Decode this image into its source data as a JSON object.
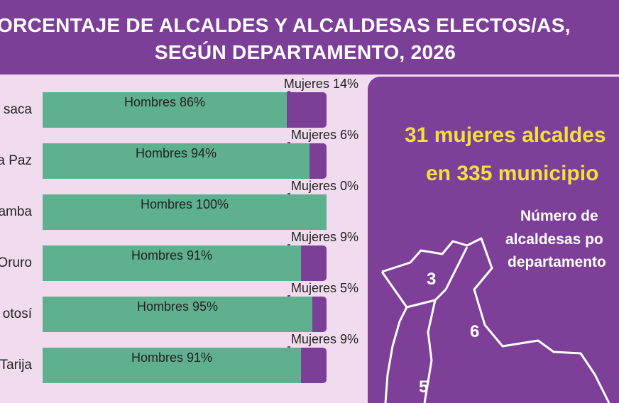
{
  "chart_data": {
    "type": "stacked-bar",
    "title": [
      "ORCENTAJE DE ALCALDES Y ALCALDESAS ELECTOS/AS,",
      "SEGÚN DEPARTAMENTO, 2026"
    ],
    "categories": [
      "saca",
      "a Paz",
      "amba",
      "Oruro",
      "otosí",
      "Tarija"
    ],
    "series": [
      {
        "name": "Hombres",
        "color": "#5fb08f",
        "values": [
          86,
          94,
          100,
          91,
          95,
          91
        ],
        "value_labels": [
          "86%",
          "94%",
          "100%",
          "91%",
          "95%",
          "91%"
        ]
      },
      {
        "name": "Mujeres",
        "color": "#7c3f98",
        "values": [
          14,
          6,
          0,
          9,
          5,
          9
        ],
        "value_labels": [
          "14%",
          "6%",
          "0%",
          "9%",
          "5%",
          "9%"
        ]
      }
    ]
  },
  "panel": {
    "headline": [
      "31 mujeres alcaldes",
      "en 335 municipio"
    ],
    "map_title": [
      "Número de",
      "alcaldesas po",
      "departamento"
    ],
    "map_labels": [
      "3",
      "6",
      "5"
    ]
  }
}
